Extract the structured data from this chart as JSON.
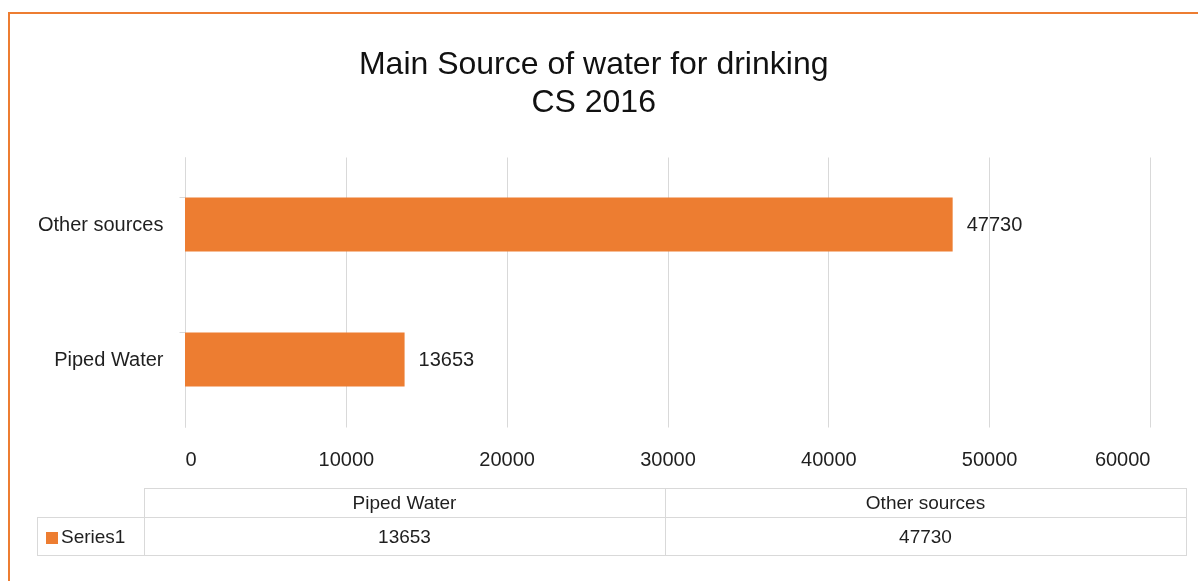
{
  "chart_data": {
    "type": "bar",
    "orientation": "horizontal",
    "title": "Main Source of water for drinking",
    "subtitle": "CS 2016",
    "categories": [
      "Other sources",
      "Piped Water"
    ],
    "series": [
      {
        "name": "Series1",
        "color": "#ed7d31",
        "values": [
          47730,
          13653
        ]
      }
    ],
    "xlim": [
      0,
      60000
    ],
    "xticks": [
      0,
      10000,
      20000,
      30000,
      40000,
      50000,
      60000
    ],
    "grid": "x",
    "data_labels": true,
    "legend": "bottom",
    "annotations": [
      "13653",
      "47730"
    ]
  }
}
